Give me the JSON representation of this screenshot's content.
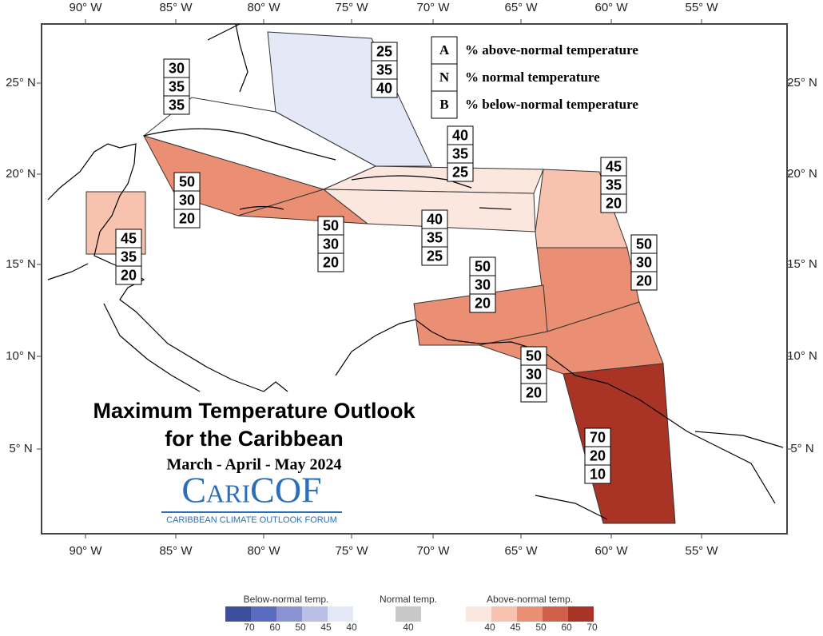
{
  "title": "Maximum Temperature Outlook",
  "subtitle": "for the Caribbean",
  "season": "March - April - May 2024",
  "logo": {
    "name": "CariCOF",
    "tagline": "CARIBBEAN CLIMATE OUTLOOK FORUM"
  },
  "key": [
    {
      "letter": "A",
      "text": "% above-normal temperature"
    },
    {
      "letter": "N",
      "text": "% normal temperature"
    },
    {
      "letter": "B",
      "text": "% below-normal temperature"
    }
  ],
  "longitudes": [
    "90° W",
    "85° W",
    "80° W",
    "75° W",
    "70° W",
    "65° W",
    "60° W",
    "55° W"
  ],
  "latitudes": [
    "25° N",
    "20° N",
    "15° N",
    "10° N",
    "5° N"
  ],
  "regions": [
    {
      "above": 25,
      "normal": 35,
      "below": 40
    },
    {
      "above": 30,
      "normal": 35,
      "below": 35
    },
    {
      "above": 50,
      "normal": 30,
      "below": 20
    },
    {
      "above": 50,
      "normal": 30,
      "below": 20
    },
    {
      "above": 40,
      "normal": 35,
      "below": 25
    },
    {
      "above": 40,
      "normal": 35,
      "below": 25
    },
    {
      "above": 45,
      "normal": 35,
      "below": 20
    },
    {
      "above": 50,
      "normal": 30,
      "below": 20
    },
    {
      "above": 50,
      "normal": 30,
      "below": 20
    },
    {
      "above": 50,
      "normal": 30,
      "below": 20
    },
    {
      "above": 70,
      "normal": 20,
      "below": 10
    },
    {
      "above": 45,
      "normal": 35,
      "below": 20
    }
  ],
  "legend": {
    "below": {
      "title": "Below-normal temp.",
      "ticks": [
        70,
        60,
        50,
        45,
        40
      ]
    },
    "normal": {
      "title": "Normal temp.",
      "ticks": [
        40
      ]
    },
    "above": {
      "title": "Above-normal temp.",
      "ticks": [
        40,
        45,
        50,
        60,
        70
      ]
    }
  }
}
